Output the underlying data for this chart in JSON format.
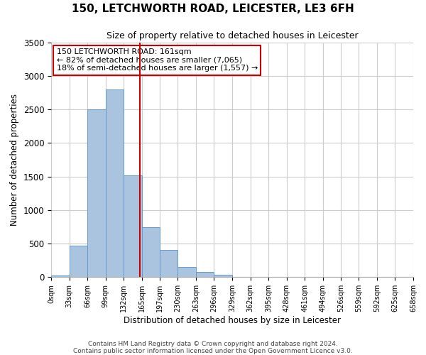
{
  "title": "150, LETCHWORTH ROAD, LEICESTER, LE3 6FH",
  "subtitle": "Size of property relative to detached houses in Leicester",
  "xlabel": "Distribution of detached houses by size in Leicester",
  "ylabel": "Number of detached properties",
  "bin_edges": [
    0,
    33,
    66,
    99,
    132,
    165,
    197,
    230,
    263,
    296,
    329,
    362,
    395,
    428,
    461,
    494,
    526,
    559,
    592,
    625,
    658
  ],
  "bin_labels": [
    "0sqm",
    "33sqm",
    "66sqm",
    "99sqm",
    "132sqm",
    "165sqm",
    "197sqm",
    "230sqm",
    "263sqm",
    "296sqm",
    "329sqm",
    "362sqm",
    "395sqm",
    "428sqm",
    "461sqm",
    "494sqm",
    "526sqm",
    "559sqm",
    "592sqm",
    "625sqm",
    "658sqm"
  ],
  "counts": [
    20,
    470,
    2500,
    2800,
    1520,
    740,
    400,
    150,
    70,
    30,
    0,
    0,
    0,
    0,
    0,
    0,
    0,
    0,
    0,
    0
  ],
  "bar_color": "#aac4e0",
  "bar_edge_color": "#6699cc",
  "vline_x": 161,
  "vline_color": "#cc0000",
  "annotation_lines": [
    "150 LETCHWORTH ROAD: 161sqm",
    "← 82% of detached houses are smaller (7,065)",
    "18% of semi-detached houses are larger (1,557) →"
  ],
  "annotation_box_color": "#ffffff",
  "annotation_box_edge_color": "#cc0000",
  "ylim": [
    0,
    3500
  ],
  "yticks": [
    0,
    500,
    1000,
    1500,
    2000,
    2500,
    3000,
    3500
  ],
  "footer_lines": [
    "Contains HM Land Registry data © Crown copyright and database right 2024.",
    "Contains public sector information licensed under the Open Government Licence v3.0."
  ],
  "background_color": "#ffffff",
  "grid_color": "#cccccc"
}
